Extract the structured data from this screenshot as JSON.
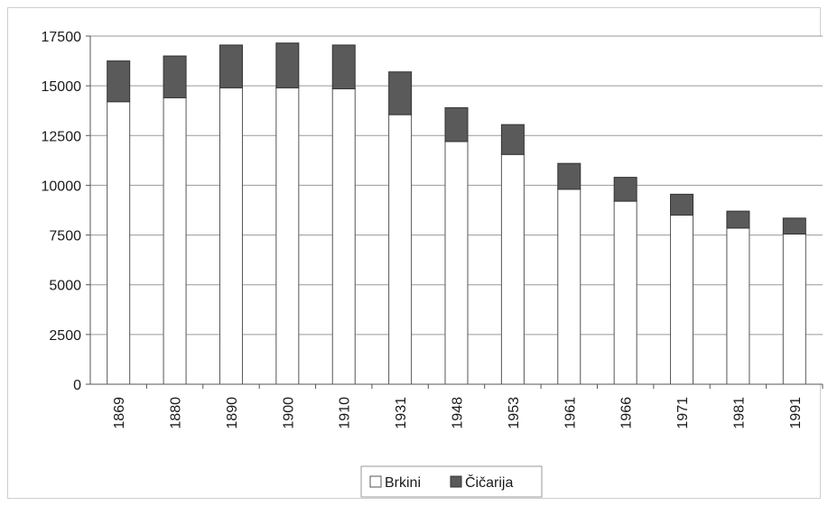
{
  "chart_data": {
    "type": "bar",
    "stacked": true,
    "categories": [
      "1869",
      "1880",
      "1890",
      "1900",
      "1910",
      "1931",
      "1948",
      "1953",
      "1961",
      "1966",
      "1971",
      "1981",
      "1991"
    ],
    "series": [
      {
        "name": "Brkini",
        "color": "#ffffff",
        "values": [
          14200,
          14400,
          14900,
          14900,
          14850,
          13550,
          12200,
          11550,
          9800,
          9200,
          8500,
          7850,
          7550
        ]
      },
      {
        "name": "Čičarija",
        "color": "#5a5a5a",
        "values": [
          2050,
          2100,
          2150,
          2250,
          2200,
          2150,
          1700,
          1500,
          1300,
          1200,
          1050,
          850,
          800
        ]
      }
    ],
    "yticks": [
      "0",
      "2500",
      "5000",
      "7500",
      "10000",
      "12500",
      "15000",
      "17500"
    ],
    "ylim": [
      0,
      17500
    ],
    "grid": true,
    "legend_position": "bottom",
    "title": "",
    "xlabel": "",
    "ylabel": ""
  }
}
